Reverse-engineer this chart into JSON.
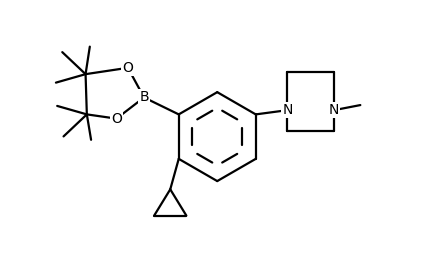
{
  "bg_color": "#ffffff",
  "line_color": "#000000",
  "line_width": 1.6,
  "font_size": 10,
  "figsize": [
    4.26,
    2.58
  ],
  "dpi": 100,
  "xlim": [
    0,
    10
  ],
  "ylim": [
    0,
    6.06
  ]
}
